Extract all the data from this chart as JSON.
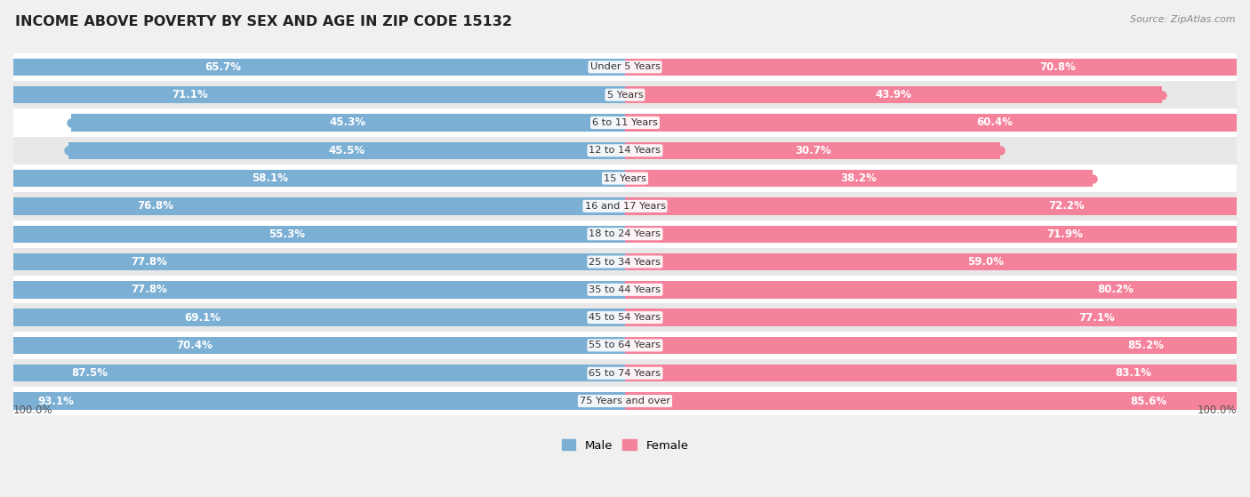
{
  "title": "INCOME ABOVE POVERTY BY SEX AND AGE IN ZIP CODE 15132",
  "source": "Source: ZipAtlas.com",
  "categories": [
    "Under 5 Years",
    "5 Years",
    "6 to 11 Years",
    "12 to 14 Years",
    "15 Years",
    "16 and 17 Years",
    "18 to 24 Years",
    "25 to 34 Years",
    "35 to 44 Years",
    "45 to 54 Years",
    "55 to 64 Years",
    "65 to 74 Years",
    "75 Years and over"
  ],
  "male_values": [
    65.7,
    71.1,
    45.3,
    45.5,
    58.1,
    76.8,
    55.3,
    77.8,
    77.8,
    69.1,
    70.4,
    87.5,
    93.1
  ],
  "female_values": [
    70.8,
    43.9,
    60.4,
    30.7,
    38.2,
    72.2,
    71.9,
    59.0,
    80.2,
    77.1,
    85.2,
    83.1,
    85.6
  ],
  "male_color": "#7bafd4",
  "female_color": "#f4829a",
  "bg_color": "#f0f0f0",
  "row_color_even": "#ffffff",
  "row_color_odd": "#e8e8e8",
  "title_fontsize": 11.5,
  "label_fontsize": 8.5,
  "cat_fontsize": 8.2,
  "source_fontsize": 8
}
